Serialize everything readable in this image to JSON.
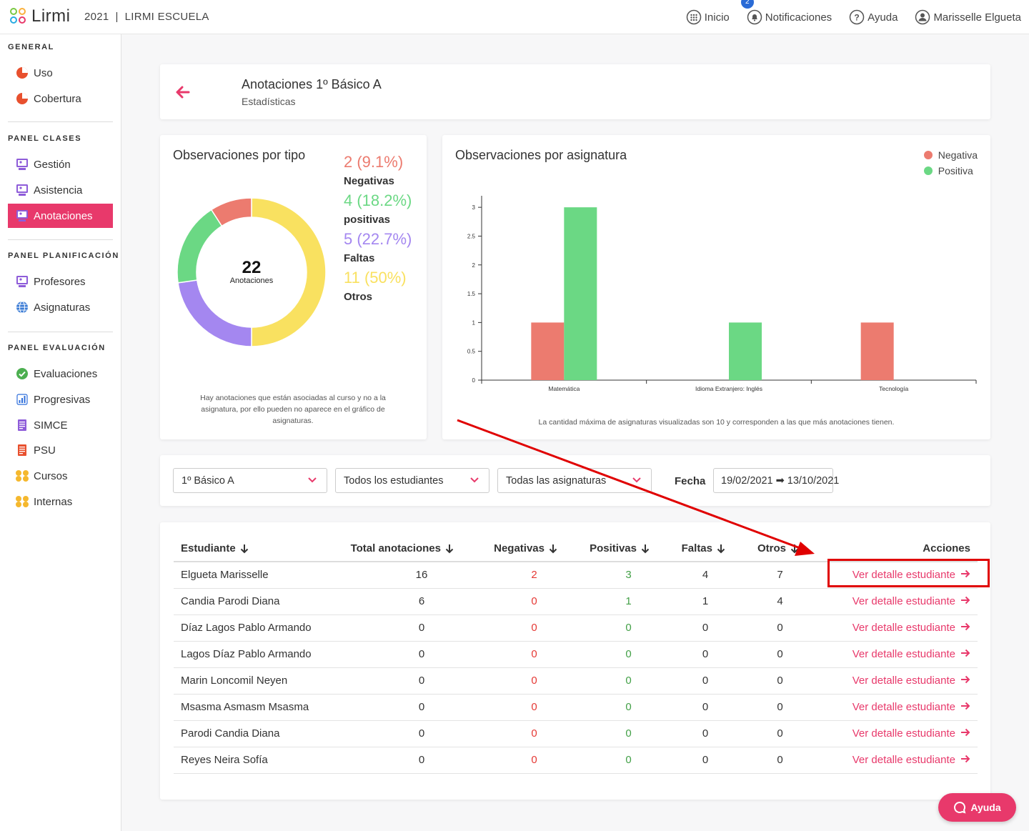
{
  "header": {
    "logo_text": "Lirmi",
    "context": "2021  |  LIRMI ESCUELA",
    "nav": [
      {
        "label": "Inicio",
        "icon": "grid-icon"
      },
      {
        "label": "Notificaciones",
        "icon": "bell-icon",
        "badge": "2"
      },
      {
        "label": "Ayuda",
        "icon": "question-icon"
      },
      {
        "label": "Marisselle Elgueta",
        "icon": "user-icon"
      }
    ]
  },
  "sidebar": {
    "sections": [
      {
        "title": "GENERAL",
        "items": [
          {
            "label": "Uso"
          },
          {
            "label": "Cobertura"
          }
        ]
      },
      {
        "title": "PANEL CLASES",
        "items": [
          {
            "label": "Gestión"
          },
          {
            "label": "Asistencia"
          },
          {
            "label": "Anotaciones",
            "active": true
          }
        ]
      },
      {
        "title": "PANEL PLANIFICACIÓN",
        "items": [
          {
            "label": "Profesores"
          },
          {
            "label": "Asignaturas"
          }
        ]
      },
      {
        "title": "PANEL EVALUACIÓN",
        "items": [
          {
            "label": "Evaluaciones"
          },
          {
            "label": "Progresivas"
          },
          {
            "label": "SIMCE"
          },
          {
            "label": "PSU"
          },
          {
            "label": "Cursos"
          },
          {
            "label": "Internas"
          }
        ]
      }
    ]
  },
  "page": {
    "title": "Anotaciones 1º Básico A",
    "subtitle": "Estadísticas"
  },
  "tipo": {
    "title": "Observaciones por tipo",
    "total": "22",
    "total_label": "Anotaciones",
    "legend": [
      {
        "value": "2 (9.1%)",
        "name": "Negativas",
        "color": "#ec7b6f"
      },
      {
        "value": "4 (18.2%)",
        "name": "positivas",
        "color": "#6bd884"
      },
      {
        "value": "5 (22.7%)",
        "name": "Faltas",
        "color": "#a487f0"
      },
      {
        "value": "11 (50%)",
        "name": "Otros",
        "color": "#f9e160"
      }
    ],
    "note": "Hay anotaciones que están asociadas al curso y no a la asignatura, por ello pueden no aparece en el gráfico de asignaturas."
  },
  "asignatura": {
    "title": "Observaciones por asignatura",
    "legend": [
      {
        "name": "Negativa",
        "color": "#ec7b6f"
      },
      {
        "name": "Positiva",
        "color": "#6bd884"
      }
    ],
    "note": "La cantidad máxima de asignaturas visualizadas son 10 y corresponden a las que más anotaciones tienen."
  },
  "chart_data": [
    {
      "type": "pie",
      "title": "Observaciones por tipo",
      "categories": [
        "Negativas",
        "positivas",
        "Faltas",
        "Otros"
      ],
      "values": [
        2,
        4,
        5,
        11
      ],
      "colors": [
        "#ec7b6f",
        "#6bd884",
        "#a487f0",
        "#f9e160"
      ]
    },
    {
      "type": "bar",
      "title": "Observaciones por asignatura",
      "categories": [
        "Matemática",
        "Idioma Extranjero: Inglés",
        "Tecnología"
      ],
      "series": [
        {
          "name": "Negativa",
          "values": [
            1,
            0,
            1
          ],
          "color": "#ec7b6f"
        },
        {
          "name": "Positiva",
          "values": [
            3,
            1,
            0
          ],
          "color": "#6bd884"
        }
      ],
      "yticks": [
        "0",
        "0.5",
        "1",
        "1.5",
        "2",
        "2.5",
        "3"
      ],
      "ylim": [
        0,
        3.2
      ]
    }
  ],
  "filters": {
    "curso": "1º Básico A",
    "estudiantes": "Todos los estudiantes",
    "asignaturas": "Todas las asignaturas",
    "fecha_label": "Fecha",
    "fecha_value": "19/02/2021 ➡ 13/10/2021"
  },
  "table": {
    "headers": [
      "Estudiante",
      "Total anotaciones",
      "Negativas",
      "Positivas",
      "Faltas",
      "Otros",
      "Acciones"
    ],
    "action_label": "Ver detalle estudiante",
    "rows": [
      [
        "Elgueta Marisselle",
        "16",
        "2",
        "3",
        "4",
        "7"
      ],
      [
        "Candia Parodi Diana",
        "6",
        "0",
        "1",
        "1",
        "4"
      ],
      [
        "Díaz Lagos Pablo Armando",
        "0",
        "0",
        "0",
        "0",
        "0"
      ],
      [
        "Lagos Díaz Pablo Armando",
        "0",
        "0",
        "0",
        "0",
        "0"
      ],
      [
        "Marin Loncomil Neyen",
        "0",
        "0",
        "0",
        "0",
        "0"
      ],
      [
        "Msasma Asmasm Msasma",
        "0",
        "0",
        "0",
        "0",
        "0"
      ],
      [
        "Parodi Candia Diana",
        "0",
        "0",
        "0",
        "0",
        "0"
      ],
      [
        "Reyes Neira Sofía",
        "0",
        "0",
        "0",
        "0",
        "0"
      ]
    ]
  },
  "help_button": "Ayuda",
  "colors": {
    "accent": "#e8396b",
    "negative": "#e53935",
    "positive": "#43a047"
  }
}
